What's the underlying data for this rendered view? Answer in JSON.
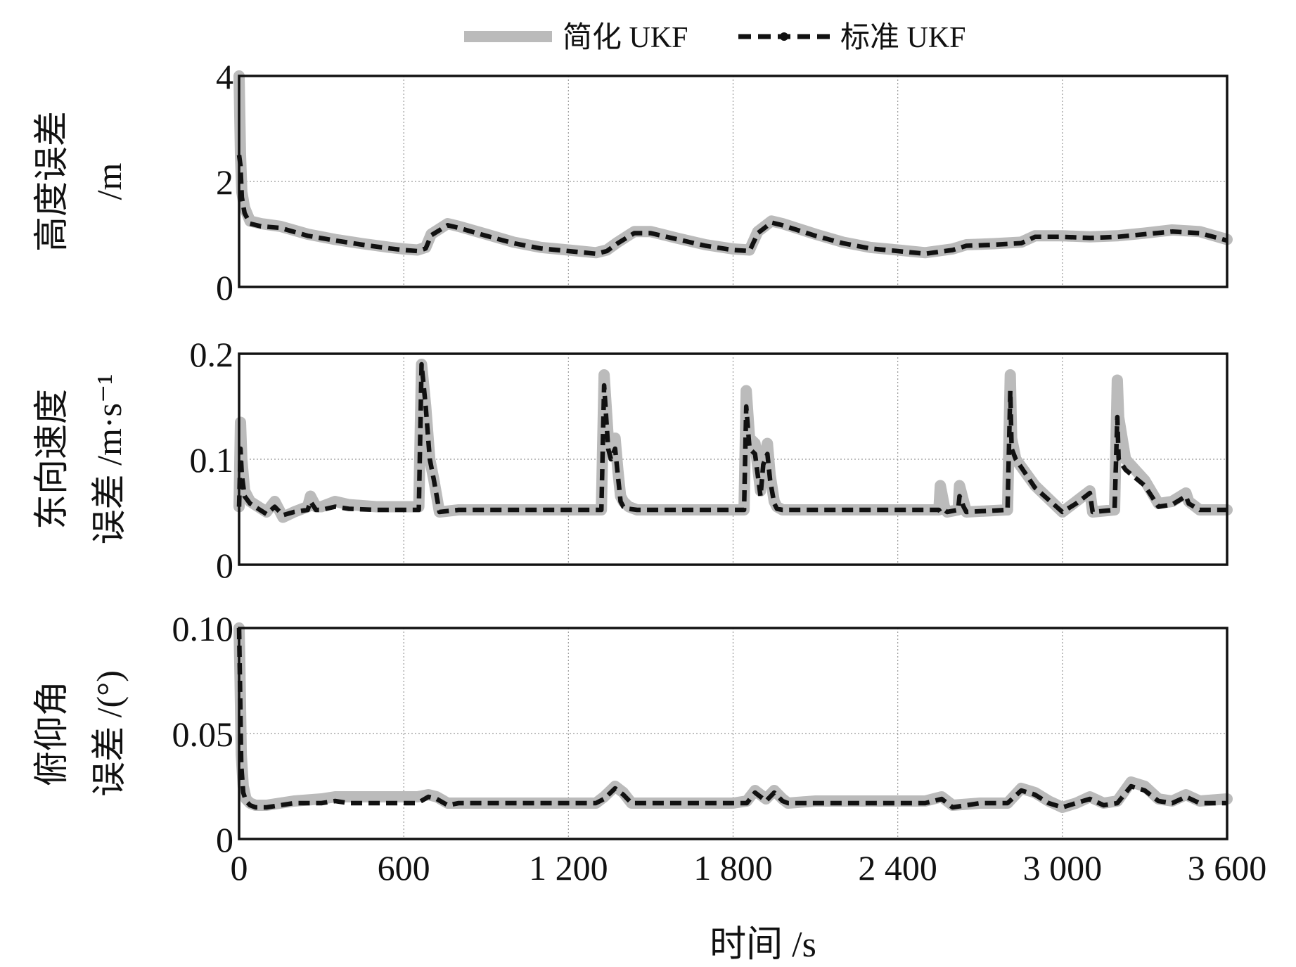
{
  "legend": {
    "simplified_label": "简化 UKF",
    "standard_label": "标准 UKF"
  },
  "x_axis": {
    "label": "时间 /s",
    "range": [
      0,
      3600
    ],
    "ticks": [
      0,
      600,
      1200,
      1800,
      2400,
      3000,
      3600
    ],
    "tick_labels": [
      "0",
      "600",
      "1 200",
      "1 800",
      "2 400",
      "3 000",
      "3 600"
    ]
  },
  "colors": {
    "simplified": "#bbbbbb",
    "standard": "#111111",
    "grid": "#999999",
    "frame": "#111111"
  },
  "chart_data": [
    {
      "type": "line",
      "ylabel_lines": [
        "高度误差",
        "/m"
      ],
      "ylim": [
        0,
        4
      ],
      "yticks": [
        0,
        2,
        4
      ],
      "ytick_labels": [
        "0",
        "2",
        "4"
      ],
      "grid": true,
      "legend_position": "top-center",
      "series": [
        {
          "name": "简化 UKF",
          "x": [
            0,
            5,
            10,
            20,
            40,
            80,
            150,
            250,
            350,
            450,
            550,
            600,
            650,
            680,
            700,
            760,
            800,
            900,
            1000,
            1100,
            1200,
            1300,
            1340,
            1380,
            1440,
            1500,
            1600,
            1700,
            1800,
            1860,
            1890,
            1940,
            1980,
            2100,
            2200,
            2300,
            2400,
            2500,
            2600,
            2650,
            2750,
            2850,
            2900,
            3000,
            3100,
            3200,
            3300,
            3400,
            3500,
            3600
          ],
          "y": [
            4.0,
            2.5,
            1.8,
            1.5,
            1.25,
            1.2,
            1.15,
            1.0,
            0.9,
            0.82,
            0.75,
            0.72,
            0.7,
            0.75,
            1.0,
            1.2,
            1.15,
            1.0,
            0.85,
            0.75,
            0.7,
            0.65,
            0.7,
            0.85,
            1.05,
            1.05,
            0.92,
            0.8,
            0.72,
            0.7,
            1.05,
            1.25,
            1.2,
            1.0,
            0.85,
            0.75,
            0.7,
            0.65,
            0.72,
            0.8,
            0.82,
            0.85,
            0.97,
            0.97,
            0.95,
            0.97,
            1.02,
            1.08,
            1.05,
            0.9
          ]
        },
        {
          "name": "标准 UKF",
          "x": [
            0,
            5,
            10,
            20,
            40,
            80,
            150,
            250,
            350,
            450,
            550,
            600,
            650,
            680,
            700,
            760,
            800,
            900,
            1000,
            1100,
            1200,
            1300,
            1340,
            1380,
            1440,
            1500,
            1600,
            1700,
            1800,
            1860,
            1890,
            1940,
            1980,
            2100,
            2200,
            2300,
            2400,
            2500,
            2600,
            2650,
            2750,
            2850,
            2900,
            3000,
            3100,
            3200,
            3300,
            3400,
            3500,
            3600
          ],
          "y": [
            2.5,
            2.3,
            1.7,
            1.4,
            1.2,
            1.15,
            1.12,
            0.97,
            0.88,
            0.8,
            0.73,
            0.7,
            0.68,
            0.73,
            0.98,
            1.17,
            1.12,
            0.97,
            0.83,
            0.73,
            0.68,
            0.63,
            0.68,
            0.83,
            1.02,
            1.02,
            0.9,
            0.78,
            0.7,
            0.68,
            1.02,
            1.22,
            1.17,
            0.97,
            0.83,
            0.73,
            0.68,
            0.63,
            0.7,
            0.78,
            0.8,
            0.83,
            0.95,
            0.95,
            0.93,
            0.95,
            1.0,
            1.05,
            1.02,
            0.88
          ]
        }
      ]
    },
    {
      "type": "line",
      "ylabel_lines": [
        "东向速度",
        "误差 /m·s⁻¹"
      ],
      "ylim": [
        0,
        0.2
      ],
      "yticks": [
        0,
        0.1,
        0.2
      ],
      "ytick_labels": [
        "0",
        "0.1",
        "0.2"
      ],
      "grid": true,
      "series": [
        {
          "name": "简化 UKF",
          "x": [
            0,
            5,
            10,
            20,
            40,
            70,
            100,
            130,
            160,
            200,
            250,
            260,
            280,
            300,
            350,
            400,
            500,
            600,
            640,
            655,
            665,
            680,
            695,
            710,
            730,
            800,
            1000,
            1200,
            1300,
            1320,
            1330,
            1345,
            1355,
            1370,
            1380,
            1390,
            1400,
            1420,
            1450,
            1600,
            1800,
            1840,
            1848,
            1860,
            1880,
            1900,
            1910,
            1925,
            1935,
            1950,
            1960,
            1980,
            2100,
            2300,
            2500,
            2550,
            2555,
            2570,
            2580,
            2620,
            2625,
            2640,
            2650,
            2800,
            2810,
            2815,
            2830,
            2900,
            3000,
            3050,
            3100,
            3110,
            3190,
            3200,
            3205,
            3230,
            3300,
            3350,
            3400,
            3450,
            3460,
            3500,
            3600
          ],
          "y": [
            0.055,
            0.135,
            0.1,
            0.07,
            0.06,
            0.055,
            0.05,
            0.06,
            0.045,
            0.05,
            0.055,
            0.065,
            0.055,
            0.055,
            0.06,
            0.057,
            0.055,
            0.055,
            0.055,
            0.055,
            0.19,
            0.15,
            0.1,
            0.08,
            0.05,
            0.052,
            0.052,
            0.052,
            0.052,
            0.052,
            0.18,
            0.12,
            0.11,
            0.12,
            0.09,
            0.065,
            0.06,
            0.055,
            0.052,
            0.052,
            0.052,
            0.052,
            0.165,
            0.12,
            0.115,
            0.07,
            0.1,
            0.115,
            0.085,
            0.06,
            0.055,
            0.052,
            0.052,
            0.052,
            0.052,
            0.052,
            0.075,
            0.055,
            0.05,
            0.052,
            0.075,
            0.06,
            0.05,
            0.052,
            0.18,
            0.12,
            0.1,
            0.075,
            0.05,
            0.06,
            0.07,
            0.05,
            0.052,
            0.175,
            0.14,
            0.1,
            0.08,
            0.058,
            0.06,
            0.068,
            0.06,
            0.052,
            0.052
          ]
        },
        {
          "name": "标准 UKF",
          "x": [
            0,
            5,
            10,
            20,
            40,
            70,
            100,
            130,
            160,
            200,
            250,
            260,
            280,
            300,
            350,
            400,
            500,
            600,
            640,
            655,
            665,
            680,
            695,
            710,
            730,
            800,
            1000,
            1200,
            1300,
            1320,
            1330,
            1345,
            1355,
            1370,
            1380,
            1390,
            1400,
            1420,
            1450,
            1600,
            1800,
            1840,
            1848,
            1860,
            1880,
            1900,
            1910,
            1925,
            1935,
            1950,
            1960,
            1980,
            2100,
            2300,
            2500,
            2550,
            2555,
            2570,
            2580,
            2620,
            2625,
            2640,
            2650,
            2800,
            2810,
            2815,
            2830,
            2900,
            3000,
            3050,
            3100,
            3110,
            3190,
            3200,
            3205,
            3230,
            3300,
            3350,
            3400,
            3450,
            3460,
            3500,
            3600
          ],
          "y": [
            0.055,
            0.11,
            0.085,
            0.065,
            0.058,
            0.053,
            0.048,
            0.055,
            0.047,
            0.05,
            0.052,
            0.06,
            0.052,
            0.052,
            0.055,
            0.053,
            0.052,
            0.052,
            0.052,
            0.052,
            0.19,
            0.15,
            0.1,
            0.08,
            0.05,
            0.052,
            0.052,
            0.052,
            0.052,
            0.052,
            0.17,
            0.11,
            0.1,
            0.11,
            0.085,
            0.06,
            0.055,
            0.053,
            0.052,
            0.052,
            0.052,
            0.052,
            0.15,
            0.11,
            0.105,
            0.065,
            0.095,
            0.105,
            0.08,
            0.058,
            0.053,
            0.052,
            0.052,
            0.052,
            0.052,
            0.052,
            0.05,
            0.052,
            0.05,
            0.052,
            0.065,
            0.055,
            0.05,
            0.052,
            0.165,
            0.11,
            0.1,
            0.073,
            0.05,
            0.058,
            0.068,
            0.05,
            0.052,
            0.14,
            0.1,
            0.09,
            0.075,
            0.055,
            0.057,
            0.065,
            0.058,
            0.052,
            0.052
          ]
        }
      ]
    },
    {
      "type": "line",
      "ylabel_lines": [
        "俯仰角",
        "误差 /(°)"
      ],
      "ylim": [
        0,
        0.1
      ],
      "yticks": [
        0,
        0.05,
        0.1
      ],
      "ytick_labels": [
        "0",
        "0.05",
        "0.10"
      ],
      "grid": true,
      "series": [
        {
          "name": "简化 UKF",
          "x": [
            0,
            3,
            8,
            15,
            25,
            40,
            60,
            100,
            150,
            200,
            300,
            350,
            400,
            500,
            600,
            650,
            690,
            720,
            760,
            800,
            1000,
            1200,
            1300,
            1330,
            1370,
            1400,
            1430,
            1500,
            1700,
            1800,
            1850,
            1880,
            1900,
            1920,
            1950,
            1980,
            2000,
            2100,
            2300,
            2500,
            2560,
            2600,
            2700,
            2800,
            2850,
            2900,
            2950,
            3000,
            3050,
            3100,
            3150,
            3200,
            3250,
            3300,
            3350,
            3400,
            3450,
            3500,
            3600
          ],
          "y": [
            0.1,
            0.08,
            0.04,
            0.025,
            0.019,
            0.017,
            0.016,
            0.016,
            0.017,
            0.018,
            0.019,
            0.02,
            0.02,
            0.02,
            0.02,
            0.02,
            0.021,
            0.02,
            0.017,
            0.017,
            0.017,
            0.017,
            0.017,
            0.02,
            0.025,
            0.022,
            0.017,
            0.017,
            0.017,
            0.017,
            0.018,
            0.023,
            0.021,
            0.019,
            0.023,
            0.019,
            0.017,
            0.018,
            0.018,
            0.018,
            0.02,
            0.016,
            0.017,
            0.017,
            0.024,
            0.022,
            0.018,
            0.015,
            0.017,
            0.02,
            0.017,
            0.018,
            0.027,
            0.025,
            0.019,
            0.018,
            0.021,
            0.018,
            0.019
          ]
        },
        {
          "name": "标准 UKF",
          "x": [
            0,
            3,
            8,
            15,
            25,
            40,
            60,
            100,
            150,
            200,
            300,
            350,
            400,
            500,
            600,
            650,
            690,
            720,
            760,
            800,
            1000,
            1200,
            1300,
            1330,
            1370,
            1400,
            1430,
            1500,
            1700,
            1800,
            1850,
            1880,
            1900,
            1920,
            1950,
            1980,
            2000,
            2100,
            2300,
            2500,
            2560,
            2600,
            2700,
            2800,
            2850,
            2900,
            2950,
            3000,
            3050,
            3100,
            3150,
            3200,
            3250,
            3300,
            3350,
            3400,
            3450,
            3500,
            3600
          ],
          "y": [
            0.1,
            0.075,
            0.035,
            0.022,
            0.018,
            0.016,
            0.015,
            0.015,
            0.016,
            0.017,
            0.017,
            0.018,
            0.017,
            0.017,
            0.017,
            0.017,
            0.02,
            0.019,
            0.016,
            0.017,
            0.017,
            0.017,
            0.017,
            0.019,
            0.024,
            0.021,
            0.017,
            0.017,
            0.017,
            0.017,
            0.017,
            0.022,
            0.02,
            0.018,
            0.022,
            0.018,
            0.017,
            0.017,
            0.017,
            0.017,
            0.019,
            0.015,
            0.017,
            0.017,
            0.023,
            0.021,
            0.017,
            0.015,
            0.017,
            0.019,
            0.016,
            0.017,
            0.025,
            0.023,
            0.018,
            0.017,
            0.02,
            0.017,
            0.017
          ]
        }
      ]
    }
  ]
}
